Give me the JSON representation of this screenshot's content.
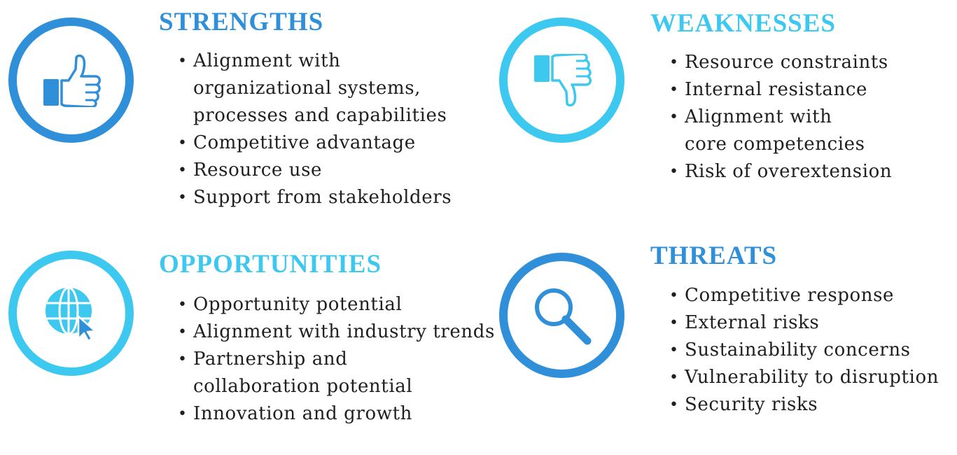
{
  "colors": {
    "dark_blue": "#2f8fd8",
    "light_blue": "#3cc8ef",
    "text": "#1f1f1f"
  },
  "strengths": {
    "title": "STRENGTHS",
    "icon": "thumbs-up-icon",
    "items": [
      "Alignment with organizational systems, processes and capabilities",
      "Competitive advantage",
      "Resource use",
      "Support from stakeholders"
    ]
  },
  "weaknesses": {
    "title": "WEAKNESSES",
    "icon": "thumbs-down-icon",
    "items": [
      "Resource constraints",
      "Internal resistance",
      "Alignment with core competencies",
      "Risk of overextension"
    ]
  },
  "opportunities": {
    "title": "OPPORTUNITIES",
    "icon": "globe-cursor-icon",
    "items": [
      "Opportunity potential",
      "Alignment with industry trends",
      "Partnership and collaboration potential",
      "Innovation and growth"
    ]
  },
  "threats": {
    "title": "THREATS",
    "icon": "magnifier-icon",
    "items": [
      "Competitive response",
      "External risks",
      "Sustainability concerns",
      "Vulnerability to disruption",
      "Security risks"
    ]
  }
}
